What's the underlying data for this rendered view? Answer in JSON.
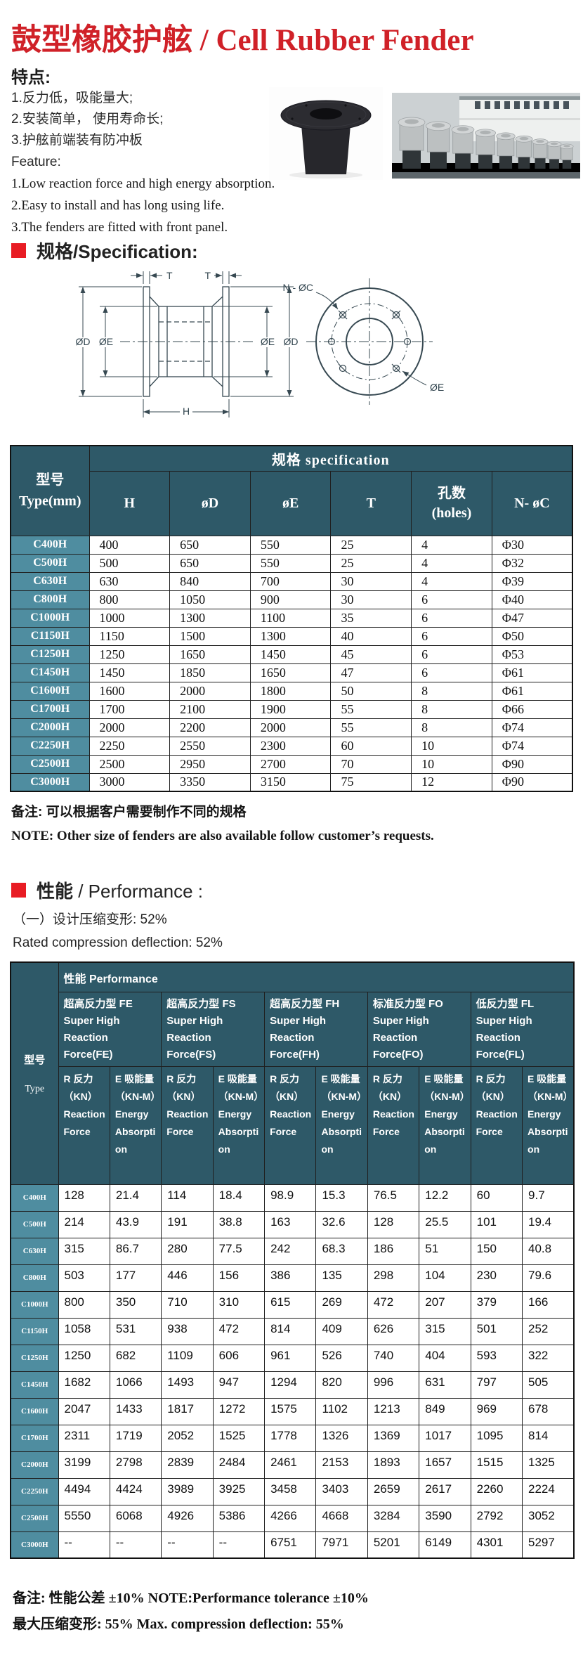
{
  "colors": {
    "accent_red": "#d02128",
    "bullet_red": "#e81c24",
    "table_header_teal": "#2e5968",
    "row_header_teal": "#4f8da0"
  },
  "header": {
    "title_cn": "鼓型橡胶护舷",
    "title_divider": " / ",
    "title_en": "Cell Rubber Fender"
  },
  "features": {
    "heading_cn": "特点:",
    "items_cn": [
      "1.反力低，吸能量大;",
      "2.安装简单， 使用寿命长;",
      "3.护舷前端装有防冲板"
    ],
    "heading_en": "Feature:",
    "items_en": [
      "1.Low reaction force and high energy absorption.",
      "2.Easy to install and has long using life.",
      "3.The fenders are fitted with front panel."
    ]
  },
  "spec_section": {
    "heading": "规格/Specification:"
  },
  "diagram": {
    "t_left": "T",
    "t_right": "T",
    "od_left": "ØD",
    "oe_left": "ØE",
    "oe_right": "ØE",
    "od_right": "ØD",
    "h_label": "H",
    "n_oc_label": "N - ØC",
    "oe_circle_label": "ØE"
  },
  "spec_table": {
    "corner_cn": "型号",
    "corner_en": "Type(mm)",
    "group_header": "规格  specification",
    "columns": [
      {
        "l1": "H",
        "l2": ""
      },
      {
        "l1": "øD",
        "l2": ""
      },
      {
        "l1": "øE",
        "l2": ""
      },
      {
        "l1": "T",
        "l2": ""
      },
      {
        "l1": "孔数",
        "l2": "(holes)"
      },
      {
        "l1": "N- øC",
        "l2": ""
      }
    ],
    "rows": [
      {
        "type": "C400H",
        "values": [
          "400",
          "650",
          "550",
          "25",
          "4",
          "Φ30"
        ]
      },
      {
        "type": "C500H",
        "values": [
          "500",
          "650",
          "550",
          "25",
          "4",
          "Φ32"
        ]
      },
      {
        "type": "C630H",
        "values": [
          "630",
          "840",
          "700",
          "30",
          "4",
          "Φ39"
        ]
      },
      {
        "type": "C800H",
        "values": [
          "800",
          "1050",
          "900",
          "30",
          "6",
          "Φ40"
        ]
      },
      {
        "type": "C1000H",
        "values": [
          "1000",
          "1300",
          "1100",
          "35",
          "6",
          "Φ47"
        ]
      },
      {
        "type": "C1150H",
        "values": [
          "1150",
          "1500",
          "1300",
          "40",
          "6",
          "Φ50"
        ]
      },
      {
        "type": "C1250H",
        "values": [
          "1250",
          "1650",
          "1450",
          "45",
          "6",
          "Φ53"
        ]
      },
      {
        "type": "C1450H",
        "values": [
          "1450",
          "1850",
          "1650",
          "47",
          "6",
          "Φ61"
        ]
      },
      {
        "type": "C1600H",
        "values": [
          "1600",
          "2000",
          "1800",
          "50",
          "8",
          "Φ61"
        ]
      },
      {
        "type": "C1700H",
        "values": [
          "1700",
          "2100",
          "1900",
          "55",
          "8",
          "Φ66"
        ]
      },
      {
        "type": "C2000H",
        "values": [
          "2000",
          "2200",
          "2000",
          "55",
          "8",
          "Φ74"
        ]
      },
      {
        "type": "C2250H",
        "values": [
          "2250",
          "2550",
          "2300",
          "60",
          "10",
          "Φ74"
        ]
      },
      {
        "type": "C2500H",
        "values": [
          "2500",
          "2950",
          "2700",
          "70",
          "10",
          "Φ90"
        ]
      },
      {
        "type": "C3000H",
        "values": [
          "3000",
          "3350",
          "3150",
          "75",
          "12",
          "Φ90"
        ]
      }
    ],
    "note_cn": "备注:  可以根据客户需要制作不同的规格",
    "note_en": "NOTE: Other size of fenders are also available follow customer’s requests."
  },
  "perf_section": {
    "heading_cn": "性能",
    "heading_rest": " / Performance :",
    "line1": "（一）设计压缩变形:  52%",
    "line2": "Rated compression deflection:  52%"
  },
  "perf_table": {
    "corner_cn": "型号",
    "corner_en": "Type",
    "top_header": "性能  Performance",
    "groups": [
      {
        "cn": "超高反力型 FE",
        "en": "Super High Reaction Force(FE)"
      },
      {
        "cn": "超高反力型 FS",
        "en": "Super High Reaction Force(FS)"
      },
      {
        "cn": "超高反力型 FH",
        "en": "Super High Reaction Force(FH)"
      },
      {
        "cn": "标准反力型 FO",
        "en": "Super High Reaction Force(FO)"
      },
      {
        "cn": "低反力型 FL",
        "en": "Super High Reaction Force(FL)"
      }
    ],
    "sub_r": {
      "cn": "R 反力",
      "unit": "（KN）",
      "en": "Reaction Force"
    },
    "sub_e": {
      "cn": "E 吸能量",
      "unit": "（KN-M）",
      "en": "Energy Absorption"
    },
    "rows": [
      {
        "type": "C400H",
        "values": [
          "128",
          "21.4",
          "114",
          "18.4",
          "98.9",
          "15.3",
          "76.5",
          "12.2",
          "60",
          "9.7"
        ]
      },
      {
        "type": "C500H",
        "values": [
          "214",
          "43.9",
          "191",
          "38.8",
          "163",
          "32.6",
          "128",
          "25.5",
          "101",
          "19.4"
        ]
      },
      {
        "type": "C630H",
        "values": [
          "315",
          "86.7",
          "280",
          "77.5",
          "242",
          "68.3",
          "186",
          "51",
          "150",
          "40.8"
        ]
      },
      {
        "type": "C800H",
        "values": [
          "503",
          "177",
          "446",
          "156",
          "386",
          "135",
          "298",
          "104",
          "230",
          "79.6"
        ]
      },
      {
        "type": "C1000H",
        "values": [
          "800",
          "350",
          "710",
          "310",
          "615",
          "269",
          "472",
          "207",
          "379",
          "166"
        ]
      },
      {
        "type": "C1150H",
        "values": [
          "1058",
          "531",
          "938",
          "472",
          "814",
          "409",
          "626",
          "315",
          "501",
          "252"
        ]
      },
      {
        "type": "C1250H",
        "values": [
          "1250",
          "682",
          "1109",
          "606",
          "961",
          "526",
          "740",
          "404",
          "593",
          "322"
        ]
      },
      {
        "type": "C1450H",
        "values": [
          "1682",
          "1066",
          "1493",
          "947",
          "1294",
          "820",
          "996",
          "631",
          "797",
          "505"
        ]
      },
      {
        "type": "C1600H",
        "values": [
          "2047",
          "1433",
          "1817",
          "1272",
          "1575",
          "1102",
          "1213",
          "849",
          "969",
          "678"
        ]
      },
      {
        "type": "C1700H",
        "values": [
          "2311",
          "1719",
          "2052",
          "1525",
          "1778",
          "1326",
          "1369",
          "1017",
          "1095",
          "814"
        ]
      },
      {
        "type": "C2000H",
        "values": [
          "3199",
          "2798",
          "2839",
          "2484",
          "2461",
          "2153",
          "1893",
          "1657",
          "1515",
          "1325"
        ]
      },
      {
        "type": "C2250H",
        "values": [
          "4494",
          "4424",
          "3989",
          "3925",
          "3458",
          "3403",
          "2659",
          "2617",
          "2260",
          "2224"
        ]
      },
      {
        "type": "C2500H",
        "values": [
          "5550",
          "6068",
          "4926",
          "5386",
          "4266",
          "4668",
          "3284",
          "3590",
          "2792",
          "3052"
        ]
      },
      {
        "type": "C3000H",
        "values": [
          "--",
          "--",
          "--",
          "--",
          "6751",
          "7971",
          "5201",
          "6149",
          "4301",
          "5297"
        ]
      }
    ]
  },
  "footer_notes": {
    "line1": "备注:  性能公差 ±10%  NOTE:Performance tolerance ±10%",
    "line2": "最大压缩变形:  55%   Max. compression deflection:  55%"
  }
}
